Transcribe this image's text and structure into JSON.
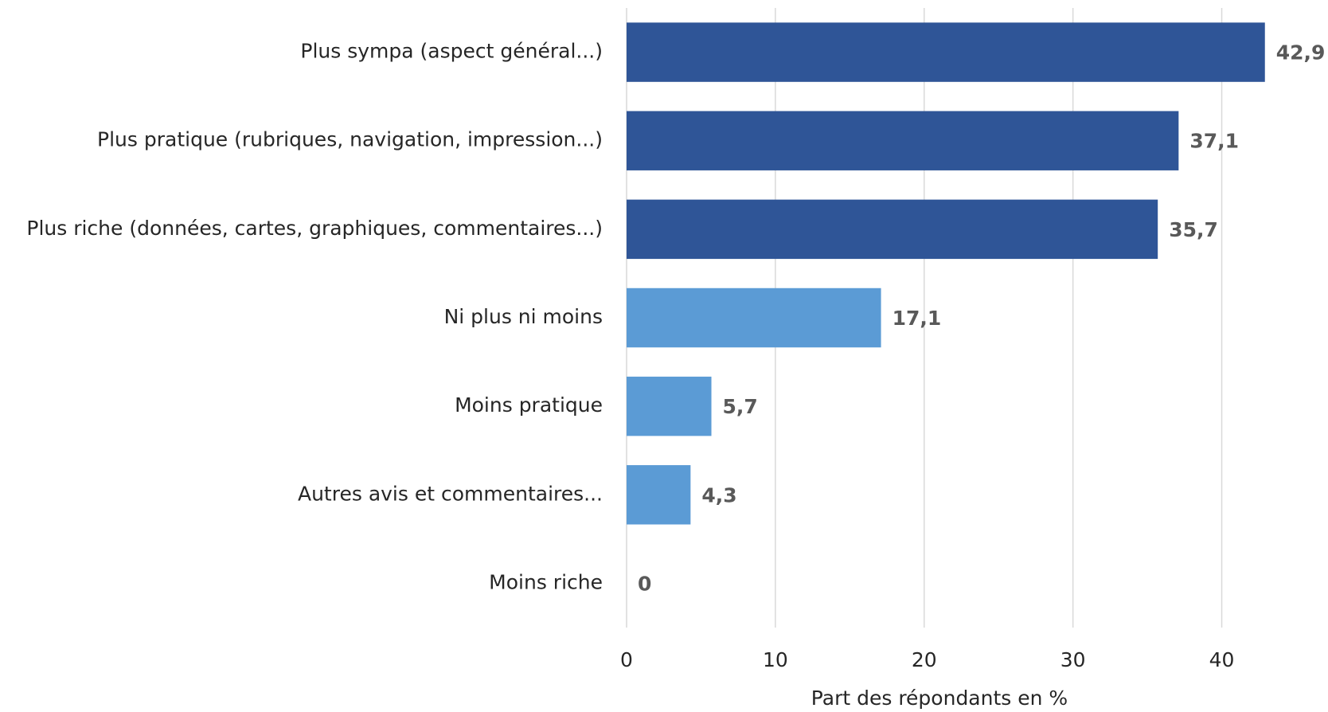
{
  "chart_data": {
    "type": "barh",
    "categories": [
      "Plus sympa (aspect général...)",
      "Plus pratique (rubriques, navigation, impression...)",
      "Plus riche (données, cartes, graphiques, commentaires...)",
      "Ni plus ni moins",
      "Moins pratique",
      "Autres avis et commentaires...",
      "Moins riche"
    ],
    "values": [
      42.9,
      37.1,
      35.7,
      17.1,
      5.7,
      4.3,
      0
    ],
    "value_labels": [
      "42,9",
      "37,1",
      "35,7",
      "17,1",
      "5,7",
      "4,3",
      "0"
    ],
    "colors": [
      "#2f5597",
      "#2f5597",
      "#2f5597",
      "#5b9bd5",
      "#5b9bd5",
      "#5b9bd5",
      "#5b9bd5"
    ],
    "xlabel": "Part des répondants en %",
    "xlim": [
      0,
      45
    ],
    "xticks": [
      0,
      10,
      20,
      30,
      40
    ],
    "grid": true
  }
}
